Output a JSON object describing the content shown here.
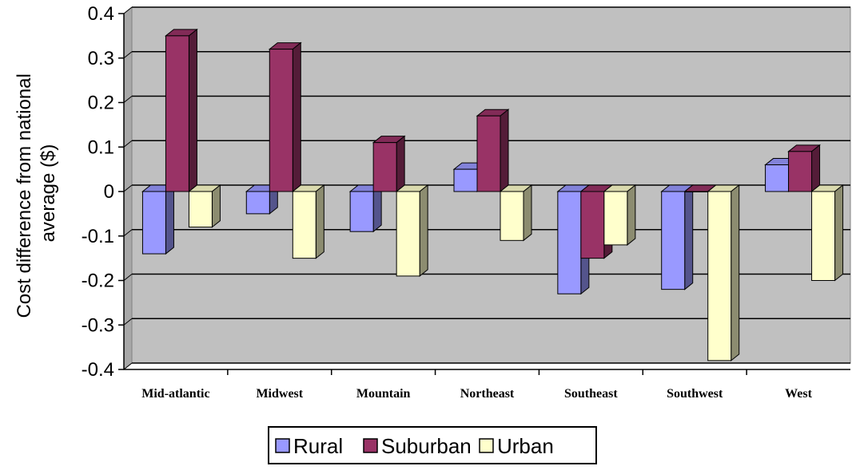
{
  "chart_data": {
    "type": "bar",
    "title": "",
    "xlabel": "",
    "ylabel": "Cost difference from national average ($)",
    "ylabel_lines": [
      "Cost difference from national",
      "average ($)"
    ],
    "categories": [
      "Mid-atlantic",
      "Midwest",
      "Mountain",
      "Northeast",
      "Southeast",
      "Southwest",
      "West"
    ],
    "series": [
      {
        "name": "Rural",
        "color": "#9999ff",
        "values": [
          -0.14,
          -0.05,
          -0.09,
          0.05,
          -0.23,
          -0.22,
          0.06
        ]
      },
      {
        "name": "Suburban",
        "color": "#993366",
        "values": [
          0.35,
          0.32,
          0.11,
          0.17,
          -0.15,
          0.0,
          0.09
        ]
      },
      {
        "name": "Urban",
        "color": "#ffffcc",
        "values": [
          -0.08,
          -0.15,
          -0.19,
          -0.11,
          -0.12,
          -0.38,
          -0.2
        ]
      }
    ],
    "ylim": [
      -0.4,
      0.4
    ],
    "yticks": [
      "0.4",
      "0.3",
      "0.2",
      "0.1",
      "0",
      "-0.1",
      "-0.2",
      "-0.3",
      "-0.4"
    ],
    "ytick_values": [
      0.4,
      0.3,
      0.2,
      0.1,
      0,
      -0.1,
      -0.2,
      -0.3,
      -0.4
    ],
    "grid": true,
    "three_d": true,
    "plot_background": "#c0c0c0",
    "legend_position": "bottom"
  }
}
